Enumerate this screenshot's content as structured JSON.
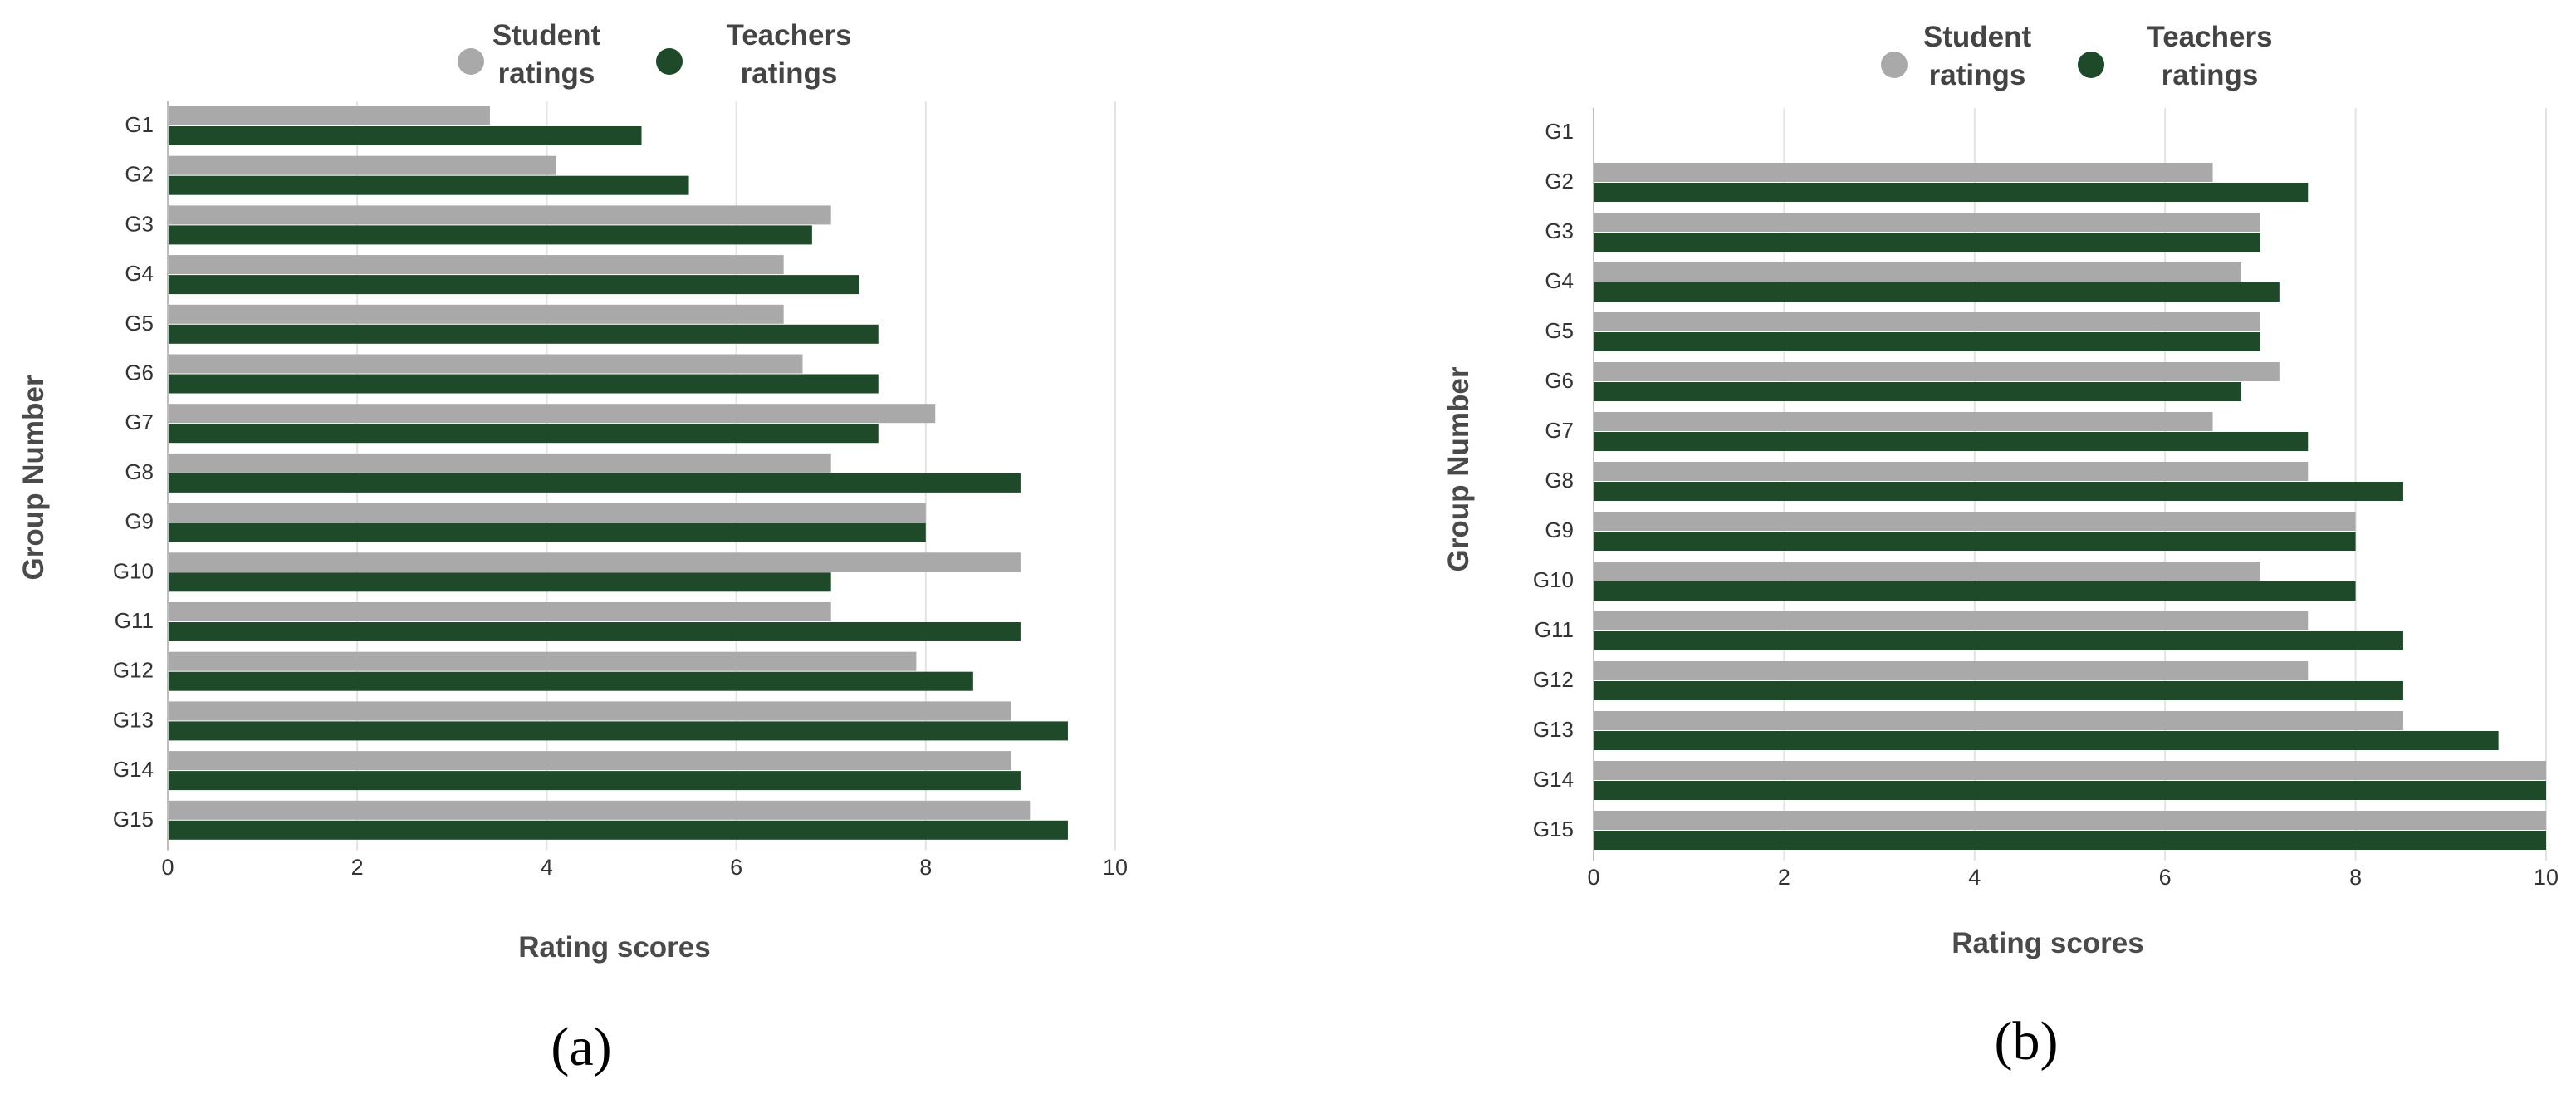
{
  "chart_data": [
    {
      "type": "bar",
      "orientation": "horizontal",
      "panel_label": "(a)",
      "xlabel": "Rating scores",
      "ylabel": "Group Number",
      "xlim": [
        0,
        10
      ],
      "x_ticks": [
        0,
        2,
        4,
        6,
        8,
        10
      ],
      "grid": true,
      "legend_position": "top",
      "categories": [
        "G1",
        "G2",
        "G3",
        "G4",
        "G5",
        "G6",
        "G7",
        "G8",
        "G9",
        "G10",
        "G11",
        "G12",
        "G13",
        "G14",
        "G15"
      ],
      "series": [
        {
          "name": "Student ratings",
          "legend_line1": "Student",
          "legend_line2": "ratings",
          "color": "#a9a9a9",
          "values": [
            3.4,
            4.1,
            7.0,
            6.5,
            6.5,
            6.7,
            8.1,
            7.0,
            8.0,
            9.0,
            7.0,
            7.9,
            8.9,
            8.9,
            9.1
          ]
        },
        {
          "name": "Teachers ratings",
          "legend_line1": "Teachers",
          "legend_line2": "ratings",
          "color": "#1e4a2a",
          "values": [
            5.0,
            5.5,
            6.8,
            7.3,
            7.5,
            7.5,
            7.5,
            9.0,
            8.0,
            7.0,
            9.0,
            8.5,
            9.5,
            9.0,
            9.5
          ]
        }
      ]
    },
    {
      "type": "bar",
      "orientation": "horizontal",
      "panel_label": "(b)",
      "xlabel": "Rating scores",
      "ylabel": "Group Number",
      "xlim": [
        0,
        10
      ],
      "x_ticks": [
        0,
        2,
        4,
        6,
        8,
        10
      ],
      "grid": true,
      "legend_position": "top",
      "categories": [
        "G1",
        "G2",
        "G3",
        "G4",
        "G5",
        "G6",
        "G7",
        "G8",
        "G9",
        "G10",
        "G11",
        "G12",
        "G13",
        "G14",
        "G15"
      ],
      "series": [
        {
          "name": "Student ratings",
          "legend_line1": "Student",
          "legend_line2": "ratings",
          "color": "#a9a9a9",
          "values": [
            0,
            6.5,
            7.0,
            6.8,
            7.0,
            7.2,
            6.5,
            7.5,
            8.0,
            7.0,
            7.5,
            7.5,
            8.5,
            10.0,
            10.0
          ]
        },
        {
          "name": "Teachers ratings",
          "legend_line1": "Teachers",
          "legend_line2": "ratings",
          "color": "#1e4a2a",
          "values": [
            0,
            7.5,
            7.0,
            7.2,
            7.0,
            6.8,
            7.5,
            8.5,
            8.0,
            8.0,
            8.5,
            8.5,
            9.5,
            10.0,
            10.0
          ]
        }
      ]
    }
  ]
}
